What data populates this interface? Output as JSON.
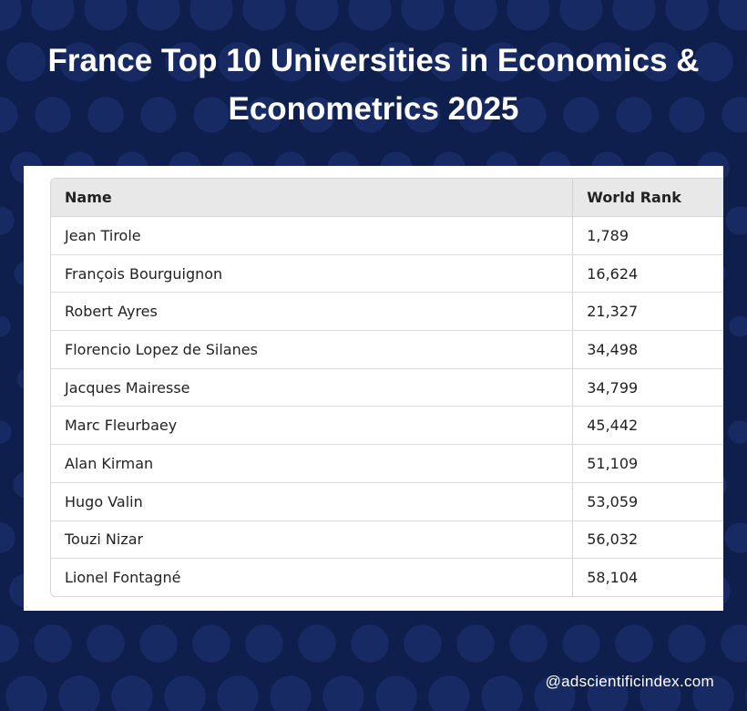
{
  "title": {
    "line1": "France Top 10 Universities in Economics &",
    "line2": "Econometrics 2025"
  },
  "table": {
    "headers": [
      "Name",
      "World Rank"
    ],
    "rows": [
      {
        "name": "Jean Tirole",
        "rank": "1,789"
      },
      {
        "name": "François Bourguignon",
        "rank": "16,624"
      },
      {
        "name": "Robert Ayres",
        "rank": "21,327"
      },
      {
        "name": "Florencio Lopez de Silanes",
        "rank": "34,498"
      },
      {
        "name": "Jacques Mairesse",
        "rank": "34,799"
      },
      {
        "name": "Marc Fleurbaey",
        "rank": "45,442"
      },
      {
        "name": "Alan Kirman",
        "rank": "51,109"
      },
      {
        "name": "Hugo Valin",
        "rank": "53,059"
      },
      {
        "name": "Touzi Nizar",
        "rank": "56,032"
      },
      {
        "name": "Lionel Fontagné",
        "rank": "58,104"
      }
    ]
  },
  "footer": {
    "handle": "@adscientificindex.com"
  },
  "colors": {
    "background": "#0f1f4d",
    "pattern": "#1b2f6b",
    "header_row": "#e8e8e8"
  }
}
